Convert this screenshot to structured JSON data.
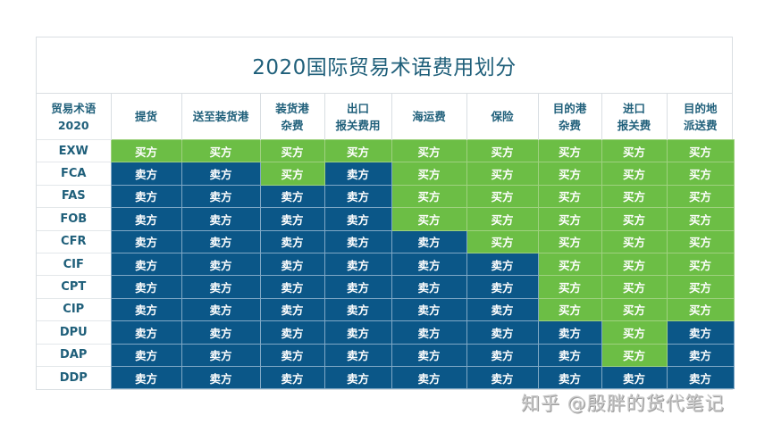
{
  "title": "2020国际贸易术语费用划分",
  "colors": {
    "buyer": "#6cbe45",
    "seller": "#0b5788",
    "header_text": "#1f5f7a"
  },
  "legend": {
    "buyer": "买方",
    "seller": "卖方"
  },
  "headers": [
    {
      "line1": "贸易术语",
      "line2": "2020"
    },
    {
      "line1": "提货",
      "line2": ""
    },
    {
      "line1": "送至装货港",
      "line2": ""
    },
    {
      "line1": "装货港",
      "line2": "杂费"
    },
    {
      "line1": "出口",
      "line2": "报关费用"
    },
    {
      "line1": "海运费",
      "line2": ""
    },
    {
      "line1": "保险",
      "line2": ""
    },
    {
      "line1": "目的港",
      "line2": "杂费"
    },
    {
      "line1": "进口",
      "line2": "报关费"
    },
    {
      "line1": "目的地",
      "line2": "派送费"
    }
  ],
  "rows": [
    {
      "term": "EXW",
      "cells": [
        "买方",
        "买方",
        "买方",
        "买方",
        "买方",
        "买方",
        "买方",
        "买方",
        "买方"
      ]
    },
    {
      "term": "FCA",
      "cells": [
        "卖方",
        "卖方",
        "买方",
        "卖方",
        "买方",
        "买方",
        "买方",
        "买方",
        "买方"
      ]
    },
    {
      "term": "FAS",
      "cells": [
        "卖方",
        "卖方",
        "卖方",
        "卖方",
        "买方",
        "买方",
        "买方",
        "买方",
        "买方"
      ]
    },
    {
      "term": "FOB",
      "cells": [
        "卖方",
        "卖方",
        "卖方",
        "卖方",
        "买方",
        "买方",
        "买方",
        "买方",
        "买方"
      ]
    },
    {
      "term": "CFR",
      "cells": [
        "卖方",
        "卖方",
        "卖方",
        "卖方",
        "卖方",
        "买方",
        "买方",
        "买方",
        "买方"
      ]
    },
    {
      "term": "CIF",
      "cells": [
        "卖方",
        "卖方",
        "卖方",
        "卖方",
        "卖方",
        "卖方",
        "买方",
        "买方",
        "买方"
      ]
    },
    {
      "term": "CPT",
      "cells": [
        "卖方",
        "卖方",
        "卖方",
        "卖方",
        "卖方",
        "卖方",
        "买方",
        "买方",
        "买方"
      ]
    },
    {
      "term": "CIP",
      "cells": [
        "卖方",
        "卖方",
        "卖方",
        "卖方",
        "卖方",
        "卖方",
        "买方",
        "买方",
        "买方"
      ]
    },
    {
      "term": "DPU",
      "cells": [
        "卖方",
        "卖方",
        "卖方",
        "卖方",
        "卖方",
        "卖方",
        "卖方",
        "买方",
        "卖方"
      ]
    },
    {
      "term": "DAP",
      "cells": [
        "卖方",
        "卖方",
        "卖方",
        "卖方",
        "卖方",
        "卖方",
        "卖方",
        "买方",
        "卖方"
      ]
    },
    {
      "term": "DDP",
      "cells": [
        "卖方",
        "卖方",
        "卖方",
        "卖方",
        "卖方",
        "卖方",
        "卖方",
        "卖方",
        "卖方"
      ]
    }
  ],
  "watermark": "知乎 @殷胖的货代笔记"
}
